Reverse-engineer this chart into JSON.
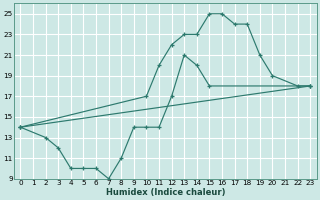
{
  "xlabel": "Humidex (Indice chaleur)",
  "bg_color": "#cde8e5",
  "grid_color": "#b8d8d5",
  "line_color": "#2d7a6e",
  "xlim": [
    -0.5,
    23.5
  ],
  "ylim": [
    9,
    26
  ],
  "xticks": [
    0,
    1,
    2,
    3,
    4,
    5,
    6,
    7,
    8,
    9,
    10,
    11,
    12,
    13,
    14,
    15,
    16,
    17,
    18,
    19,
    20,
    21,
    22,
    23
  ],
  "yticks": [
    9,
    11,
    13,
    15,
    17,
    19,
    21,
    23,
    25
  ],
  "line_upper": {
    "x": [
      0,
      10,
      11,
      12,
      13,
      14,
      15,
      16,
      17,
      18,
      19,
      20,
      22,
      23
    ],
    "y": [
      14,
      17,
      20,
      22,
      23,
      23,
      25,
      25,
      24,
      24,
      21,
      19,
      18,
      18
    ]
  },
  "line_lower": {
    "x": [
      0,
      2,
      3,
      4,
      5,
      6,
      7,
      8,
      9,
      10,
      11,
      12,
      13,
      14,
      15,
      23
    ],
    "y": [
      14,
      13,
      12,
      10,
      10,
      10,
      9,
      11,
      14,
      14,
      14,
      17,
      21,
      20,
      18,
      18
    ]
  },
  "line_diag": {
    "x": [
      0,
      23
    ],
    "y": [
      14,
      18
    ]
  }
}
